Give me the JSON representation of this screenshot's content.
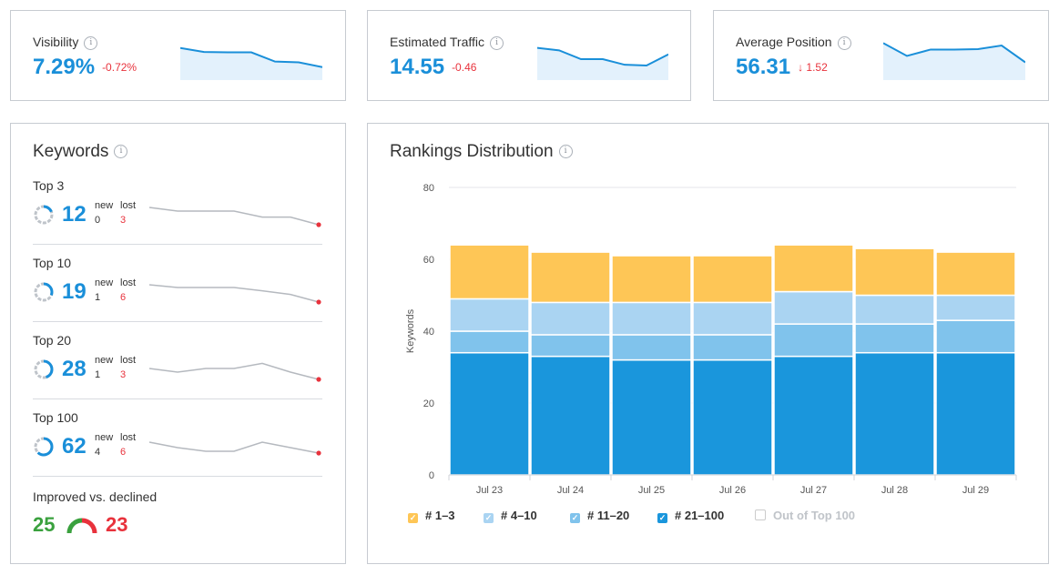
{
  "kpis": [
    {
      "label": "Visibility",
      "value": "7.29%",
      "delta": "-0.72%",
      "trend": [
        0.78,
        0.68,
        0.67,
        0.67,
        0.44,
        0.42,
        0.3
      ]
    },
    {
      "label": "Estimated Traffic",
      "value": "14.55",
      "delta": "-0.46",
      "trend": [
        0.78,
        0.72,
        0.5,
        0.5,
        0.36,
        0.34,
        0.62
      ]
    },
    {
      "label": "Average Position",
      "value": "56.31",
      "delta": "↓ 1.52",
      "trend": [
        0.9,
        0.58,
        0.74,
        0.74,
        0.75,
        0.84,
        0.42
      ]
    }
  ],
  "keywords": {
    "title": "Keywords",
    "new_label": "new",
    "lost_label": "lost",
    "groups": [
      {
        "title": "Top 3",
        "value": "12",
        "new": "0",
        "lost": "3",
        "ring_fraction": 0.19,
        "trend": [
          0.95,
          0.75,
          0.75,
          0.75,
          0.42,
          0.42,
          0.0
        ]
      },
      {
        "title": "Top 10",
        "value": "19",
        "new": "1",
        "lost": "6",
        "ring_fraction": 0.31,
        "trend": [
          0.95,
          0.8,
          0.8,
          0.8,
          0.62,
          0.42,
          0.0
        ]
      },
      {
        "title": "Top 20",
        "value": "28",
        "new": "1",
        "lost": "3",
        "ring_fraction": 0.45,
        "trend": [
          0.6,
          0.4,
          0.6,
          0.6,
          0.88,
          0.4,
          0.0
        ]
      },
      {
        "title": "Top 100",
        "value": "62",
        "new": "4",
        "lost": "6",
        "ring_fraction": 0.62,
        "trend": [
          0.8,
          0.5,
          0.3,
          0.3,
          0.8,
          0.5,
          0.2
        ]
      }
    ],
    "improved_label": "Improved vs. declined",
    "improved": "25",
    "declined": "23"
  },
  "rankings": {
    "title": "Rankings Distribution",
    "legend": [
      {
        "label": "# 1–3",
        "color": "#fec656",
        "checked": true
      },
      {
        "label": "# 4–10",
        "color": "#aad4f2",
        "checked": true
      },
      {
        "label": "# 11–20",
        "color": "#80c3ec",
        "checked": true
      },
      {
        "label": "# 21–100",
        "color": "#1a96dc",
        "checked": true
      },
      {
        "label": "Out of Top 100",
        "color": "#cccccc",
        "checked": false
      }
    ]
  },
  "chart_data": {
    "type": "bar",
    "stacked": true,
    "categories": [
      "Jul 23",
      "Jul 24",
      "Jul 25",
      "Jul 26",
      "Jul 27",
      "Jul 28",
      "Jul 29"
    ],
    "series": [
      {
        "name": "# 21–100",
        "color": "#1a96dc",
        "values": [
          34,
          33,
          32,
          32,
          33,
          34,
          34
        ]
      },
      {
        "name": "# 11–20",
        "color": "#80c3ec",
        "values": [
          6,
          6,
          7,
          7,
          9,
          8,
          9
        ]
      },
      {
        "name": "# 4–10",
        "color": "#aad4f2",
        "values": [
          9,
          9,
          9,
          9,
          9,
          8,
          7
        ]
      },
      {
        "name": "# 1–3",
        "color": "#fec656",
        "values": [
          15,
          14,
          13,
          13,
          13,
          13,
          12
        ]
      }
    ],
    "ylabel": "Keywords",
    "ylim": [
      0,
      80
    ],
    "yticks": [
      0,
      20,
      40,
      60,
      80
    ],
    "grid": true,
    "legend_position": "bottom"
  },
  "colors": {
    "accent": "#1a8fd9",
    "negative": "#e8323c",
    "positive": "#3aa13e",
    "ring_track": "#bfc4ca"
  }
}
